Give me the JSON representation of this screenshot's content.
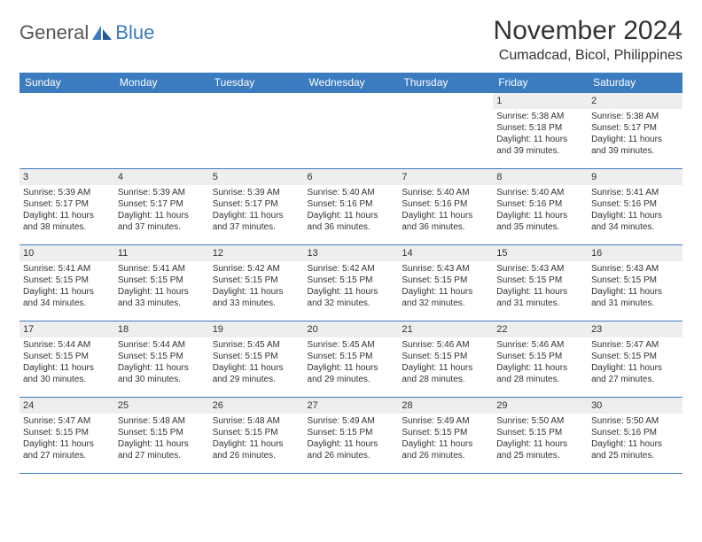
{
  "brand": {
    "text1": "General",
    "text2": "Blue"
  },
  "title": "November 2024",
  "location": "Cumadcad, Bicol, Philippines",
  "colors": {
    "header_bg": "#3b7bbf",
    "header_text": "#ffffff",
    "daynum_bg": "#eeeeee",
    "border": "#3b7bbf",
    "text": "#333333",
    "brand_blue": "#3b7bbf",
    "brand_gray": "#555555",
    "page_bg": "#ffffff"
  },
  "typography": {
    "month_title_pt": 30,
    "location_pt": 16,
    "weekday_pt": 12,
    "daynum_pt": 11,
    "body_pt": 10,
    "logo_pt": 22
  },
  "weekdays": [
    "Sunday",
    "Monday",
    "Tuesday",
    "Wednesday",
    "Thursday",
    "Friday",
    "Saturday"
  ],
  "weeks": [
    [
      {
        "n": "",
        "sr": "",
        "ss": "",
        "dl": ""
      },
      {
        "n": "",
        "sr": "",
        "ss": "",
        "dl": ""
      },
      {
        "n": "",
        "sr": "",
        "ss": "",
        "dl": ""
      },
      {
        "n": "",
        "sr": "",
        "ss": "",
        "dl": ""
      },
      {
        "n": "",
        "sr": "",
        "ss": "",
        "dl": ""
      },
      {
        "n": "1",
        "sr": "Sunrise: 5:38 AM",
        "ss": "Sunset: 5:18 PM",
        "dl": "Daylight: 11 hours and 39 minutes."
      },
      {
        "n": "2",
        "sr": "Sunrise: 5:38 AM",
        "ss": "Sunset: 5:17 PM",
        "dl": "Daylight: 11 hours and 39 minutes."
      }
    ],
    [
      {
        "n": "3",
        "sr": "Sunrise: 5:39 AM",
        "ss": "Sunset: 5:17 PM",
        "dl": "Daylight: 11 hours and 38 minutes."
      },
      {
        "n": "4",
        "sr": "Sunrise: 5:39 AM",
        "ss": "Sunset: 5:17 PM",
        "dl": "Daylight: 11 hours and 37 minutes."
      },
      {
        "n": "5",
        "sr": "Sunrise: 5:39 AM",
        "ss": "Sunset: 5:17 PM",
        "dl": "Daylight: 11 hours and 37 minutes."
      },
      {
        "n": "6",
        "sr": "Sunrise: 5:40 AM",
        "ss": "Sunset: 5:16 PM",
        "dl": "Daylight: 11 hours and 36 minutes."
      },
      {
        "n": "7",
        "sr": "Sunrise: 5:40 AM",
        "ss": "Sunset: 5:16 PM",
        "dl": "Daylight: 11 hours and 36 minutes."
      },
      {
        "n": "8",
        "sr": "Sunrise: 5:40 AM",
        "ss": "Sunset: 5:16 PM",
        "dl": "Daylight: 11 hours and 35 minutes."
      },
      {
        "n": "9",
        "sr": "Sunrise: 5:41 AM",
        "ss": "Sunset: 5:16 PM",
        "dl": "Daylight: 11 hours and 34 minutes."
      }
    ],
    [
      {
        "n": "10",
        "sr": "Sunrise: 5:41 AM",
        "ss": "Sunset: 5:15 PM",
        "dl": "Daylight: 11 hours and 34 minutes."
      },
      {
        "n": "11",
        "sr": "Sunrise: 5:41 AM",
        "ss": "Sunset: 5:15 PM",
        "dl": "Daylight: 11 hours and 33 minutes."
      },
      {
        "n": "12",
        "sr": "Sunrise: 5:42 AM",
        "ss": "Sunset: 5:15 PM",
        "dl": "Daylight: 11 hours and 33 minutes."
      },
      {
        "n": "13",
        "sr": "Sunrise: 5:42 AM",
        "ss": "Sunset: 5:15 PM",
        "dl": "Daylight: 11 hours and 32 minutes."
      },
      {
        "n": "14",
        "sr": "Sunrise: 5:43 AM",
        "ss": "Sunset: 5:15 PM",
        "dl": "Daylight: 11 hours and 32 minutes."
      },
      {
        "n": "15",
        "sr": "Sunrise: 5:43 AM",
        "ss": "Sunset: 5:15 PM",
        "dl": "Daylight: 11 hours and 31 minutes."
      },
      {
        "n": "16",
        "sr": "Sunrise: 5:43 AM",
        "ss": "Sunset: 5:15 PM",
        "dl": "Daylight: 11 hours and 31 minutes."
      }
    ],
    [
      {
        "n": "17",
        "sr": "Sunrise: 5:44 AM",
        "ss": "Sunset: 5:15 PM",
        "dl": "Daylight: 11 hours and 30 minutes."
      },
      {
        "n": "18",
        "sr": "Sunrise: 5:44 AM",
        "ss": "Sunset: 5:15 PM",
        "dl": "Daylight: 11 hours and 30 minutes."
      },
      {
        "n": "19",
        "sr": "Sunrise: 5:45 AM",
        "ss": "Sunset: 5:15 PM",
        "dl": "Daylight: 11 hours and 29 minutes."
      },
      {
        "n": "20",
        "sr": "Sunrise: 5:45 AM",
        "ss": "Sunset: 5:15 PM",
        "dl": "Daylight: 11 hours and 29 minutes."
      },
      {
        "n": "21",
        "sr": "Sunrise: 5:46 AM",
        "ss": "Sunset: 5:15 PM",
        "dl": "Daylight: 11 hours and 28 minutes."
      },
      {
        "n": "22",
        "sr": "Sunrise: 5:46 AM",
        "ss": "Sunset: 5:15 PM",
        "dl": "Daylight: 11 hours and 28 minutes."
      },
      {
        "n": "23",
        "sr": "Sunrise: 5:47 AM",
        "ss": "Sunset: 5:15 PM",
        "dl": "Daylight: 11 hours and 27 minutes."
      }
    ],
    [
      {
        "n": "24",
        "sr": "Sunrise: 5:47 AM",
        "ss": "Sunset: 5:15 PM",
        "dl": "Daylight: 11 hours and 27 minutes."
      },
      {
        "n": "25",
        "sr": "Sunrise: 5:48 AM",
        "ss": "Sunset: 5:15 PM",
        "dl": "Daylight: 11 hours and 27 minutes."
      },
      {
        "n": "26",
        "sr": "Sunrise: 5:48 AM",
        "ss": "Sunset: 5:15 PM",
        "dl": "Daylight: 11 hours and 26 minutes."
      },
      {
        "n": "27",
        "sr": "Sunrise: 5:49 AM",
        "ss": "Sunset: 5:15 PM",
        "dl": "Daylight: 11 hours and 26 minutes."
      },
      {
        "n": "28",
        "sr": "Sunrise: 5:49 AM",
        "ss": "Sunset: 5:15 PM",
        "dl": "Daylight: 11 hours and 26 minutes."
      },
      {
        "n": "29",
        "sr": "Sunrise: 5:50 AM",
        "ss": "Sunset: 5:15 PM",
        "dl": "Daylight: 11 hours and 25 minutes."
      },
      {
        "n": "30",
        "sr": "Sunrise: 5:50 AM",
        "ss": "Sunset: 5:16 PM",
        "dl": "Daylight: 11 hours and 25 minutes."
      }
    ]
  ]
}
